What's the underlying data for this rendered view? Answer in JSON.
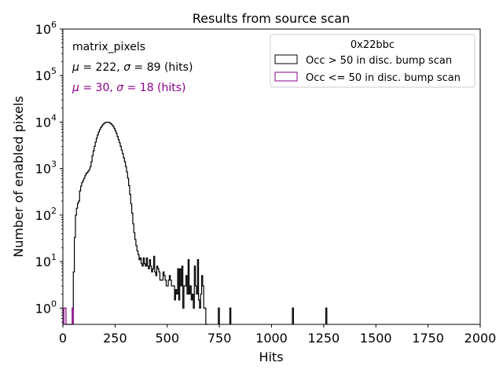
{
  "chart_data": {
    "type": "histogram",
    "title": "Results from source scan",
    "xlabel": "Hits",
    "ylabel": "Number of enabled pixels",
    "xlim": [
      0,
      2000
    ],
    "ylim_log10": [
      -0.35,
      6
    ],
    "yscale": "log",
    "x_ticks": [
      "0",
      "250",
      "500",
      "750",
      "1000",
      "1250",
      "1500",
      "1750",
      "2000"
    ],
    "x_tick_values": [
      0,
      250,
      500,
      750,
      1000,
      1250,
      1500,
      1750,
      2000
    ],
    "y_ticks": [
      {
        "base": "10",
        "exp": "0",
        "value": 1
      },
      {
        "base": "10",
        "exp": "1",
        "value": 10
      },
      {
        "base": "10",
        "exp": "2",
        "value": 100
      },
      {
        "base": "10",
        "exp": "3",
        "value": 1000
      },
      {
        "base": "10",
        "exp": "4",
        "value": 10000
      },
      {
        "base": "10",
        "exp": "5",
        "value": 100000
      },
      {
        "base": "10",
        "exp": "6",
        "value": 1000000
      }
    ],
    "annotations": {
      "label": "matrix_pixels",
      "stats_black": {
        "mu_sym": "μ",
        "mu_text": " = 222, ",
        "sigma_sym": "σ",
        "sigma_text": " = 89 (hits)"
      },
      "stats_purple": {
        "mu_sym": "μ",
        "mu_text": " = 30, ",
        "sigma_sym": "σ",
        "sigma_text": " = 18 (hits)"
      }
    },
    "legend": {
      "title": "0x22bbc",
      "placement": "upper right",
      "entries": [
        {
          "label": "Occ > 50 in disc. bump scan",
          "color": "#000000"
        },
        {
          "label": "Occ <= 50 in disc. bump scan",
          "color": "#8b008b"
        }
      ]
    },
    "bin_width": 5,
    "series": [
      {
        "name": "Occ > 50 in disc. bump scan",
        "color": "#000000",
        "bins": [
          [
            45,
            1
          ],
          [
            50,
            6
          ],
          [
            55,
            33
          ],
          [
            60,
            100
          ],
          [
            65,
            140
          ],
          [
            70,
            180
          ],
          [
            75,
            200
          ],
          [
            80,
            330
          ],
          [
            85,
            420
          ],
          [
            90,
            500
          ],
          [
            95,
            550
          ],
          [
            100,
            620
          ],
          [
            105,
            700
          ],
          [
            110,
            780
          ],
          [
            115,
            820
          ],
          [
            120,
            880
          ],
          [
            125,
            950
          ],
          [
            130,
            1100
          ],
          [
            135,
            1400
          ],
          [
            140,
            1900
          ],
          [
            145,
            2400
          ],
          [
            150,
            3000
          ],
          [
            155,
            3700
          ],
          [
            160,
            4500
          ],
          [
            165,
            5300
          ],
          [
            170,
            6100
          ],
          [
            175,
            6900
          ],
          [
            180,
            7600
          ],
          [
            185,
            8200
          ],
          [
            190,
            8800
          ],
          [
            195,
            9300
          ],
          [
            200,
            9700
          ],
          [
            205,
            9900
          ],
          [
            210,
            10000
          ],
          [
            215,
            9950
          ],
          [
            220,
            9800
          ],
          [
            225,
            9500
          ],
          [
            230,
            9100
          ],
          [
            235,
            8600
          ],
          [
            240,
            8000
          ],
          [
            245,
            7300
          ],
          [
            250,
            6500
          ],
          [
            255,
            5700
          ],
          [
            260,
            4900
          ],
          [
            265,
            4200
          ],
          [
            270,
            3600
          ],
          [
            275,
            3000
          ],
          [
            280,
            2500
          ],
          [
            285,
            2100
          ],
          [
            290,
            1700
          ],
          [
            295,
            1400
          ],
          [
            300,
            1100
          ],
          [
            305,
            850
          ],
          [
            310,
            620
          ],
          [
            315,
            430
          ],
          [
            320,
            280
          ],
          [
            325,
            175
          ],
          [
            330,
            110
          ],
          [
            335,
            65
          ],
          [
            340,
            42
          ],
          [
            345,
            30
          ],
          [
            350,
            22
          ],
          [
            355,
            17
          ],
          [
            360,
            14
          ],
          [
            365,
            11
          ],
          [
            370,
            12
          ],
          [
            375,
            9
          ],
          [
            380,
            8
          ],
          [
            385,
            12
          ],
          [
            390,
            9
          ],
          [
            395,
            8
          ],
          [
            400,
            12
          ],
          [
            405,
            8
          ],
          [
            410,
            7
          ],
          [
            415,
            11
          ],
          [
            420,
            8
          ],
          [
            425,
            6
          ],
          [
            430,
            7
          ],
          [
            435,
            13
          ],
          [
            440,
            6
          ],
          [
            445,
            5
          ],
          [
            450,
            8
          ],
          [
            455,
            7
          ],
          [
            460,
            6
          ],
          [
            465,
            4
          ],
          [
            470,
            4
          ],
          [
            475,
            4
          ],
          [
            480,
            6
          ],
          [
            485,
            5
          ],
          [
            490,
            4
          ],
          [
            495,
            3
          ],
          [
            500,
            3
          ],
          [
            505,
            4
          ],
          [
            510,
            5
          ],
          [
            515,
            4
          ],
          [
            520,
            3
          ],
          [
            525,
            3
          ],
          [
            530,
            3
          ],
          [
            535,
            1.5
          ],
          [
            540,
            2.5
          ],
          [
            545,
            2
          ],
          [
            550,
            7
          ],
          [
            555,
            1.5
          ],
          [
            560,
            7
          ],
          [
            565,
            3
          ],
          [
            570,
            8
          ],
          [
            575,
            1
          ],
          [
            580,
            3
          ],
          [
            585,
            3
          ],
          [
            590,
            5
          ],
          [
            595,
            2
          ],
          [
            600,
            11
          ],
          [
            605,
            2
          ],
          [
            610,
            3
          ],
          [
            615,
            1.5
          ],
          [
            620,
            2
          ],
          [
            625,
            1
          ],
          [
            630,
            8
          ],
          [
            635,
            3
          ],
          [
            640,
            2
          ],
          [
            645,
            11
          ],
          [
            650,
            1.5
          ],
          [
            655,
            1
          ],
          [
            660,
            2
          ],
          [
            665,
            5
          ],
          [
            670,
            3
          ],
          [
            675,
            1
          ],
          [
            680,
            1
          ],
          [
            685,
            0.3
          ],
          [
            690,
            0.3
          ],
          [
            745,
            1
          ],
          [
            800,
            1
          ],
          [
            1100,
            1
          ],
          [
            1260,
            1
          ]
        ]
      },
      {
        "name": "Occ <= 50 in disc. bump scan",
        "color": "#8b008b",
        "bins": [
          [
            5,
            1
          ],
          [
            10,
            1
          ],
          [
            15,
            0.3
          ],
          [
            20,
            0.3
          ],
          [
            25,
            0.3
          ],
          [
            30,
            0.3
          ],
          [
            35,
            0.3
          ],
          [
            40,
            0.3
          ],
          [
            45,
            1
          ]
        ]
      }
    ]
  }
}
